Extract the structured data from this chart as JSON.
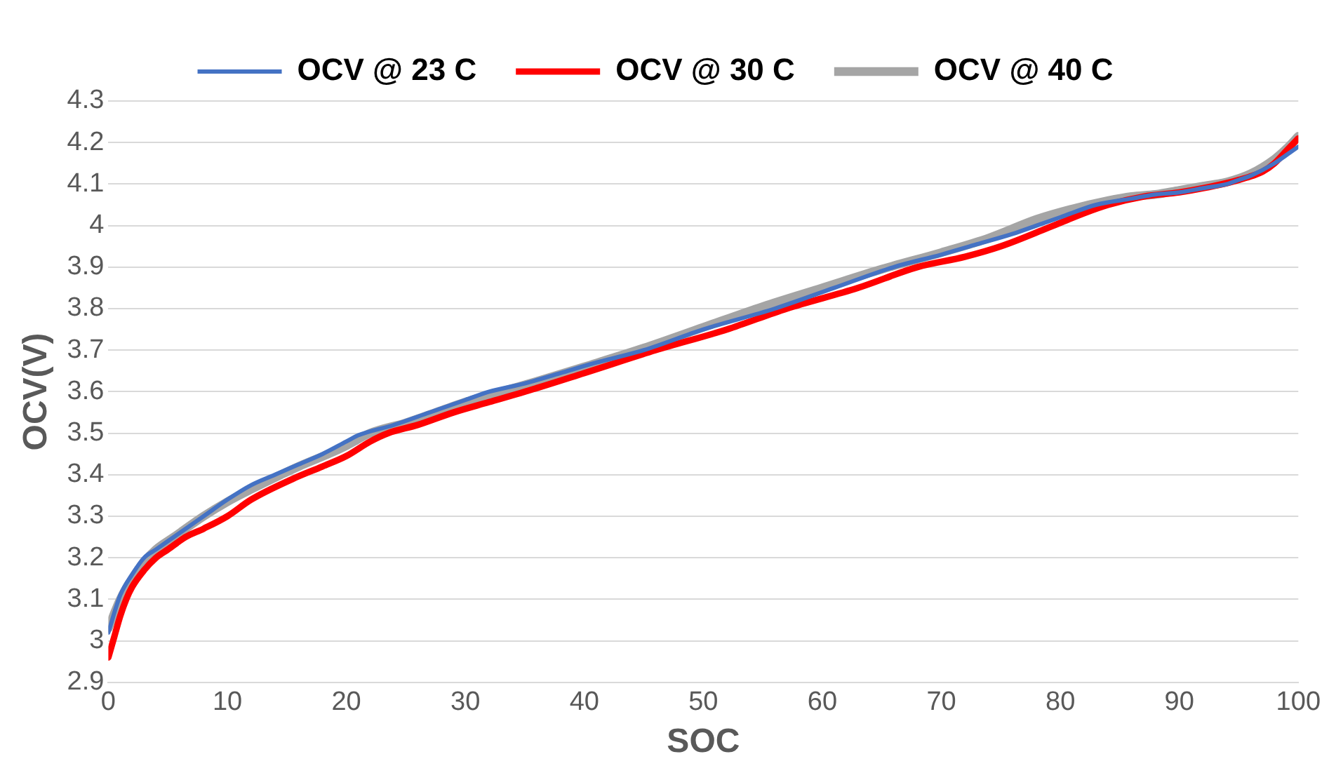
{
  "chart_data": {
    "type": "line",
    "xlabel": "SOC",
    "ylabel": "OCV(V)",
    "xlim": [
      0,
      100
    ],
    "xticks": [
      0,
      10,
      20,
      30,
      40,
      50,
      60,
      70,
      80,
      90,
      100
    ],
    "ylim": [
      2.9,
      4.3
    ],
    "yticks": [
      2.9,
      3,
      3.1,
      3.2,
      3.3,
      3.4,
      3.5,
      3.6,
      3.7,
      3.8,
      3.9,
      4,
      4.1,
      4.2,
      4.3
    ],
    "grid": "y",
    "legend": "top",
    "marker": "none",
    "line_style": "solid",
    "series": [
      {
        "name": "OCV @ 23 C",
        "color": "#4472c4",
        "x": [
          0,
          1,
          2,
          3,
          4,
          6,
          8,
          10,
          12,
          14,
          16,
          18,
          20,
          21,
          24,
          27,
          30,
          32,
          35,
          38,
          41,
          45,
          50,
          56,
          61,
          66,
          70,
          73,
          76,
          78,
          80,
          83,
          86,
          88,
          90,
          92,
          94,
          95,
          96,
          98,
          99,
          100
        ],
        "values": [
          3.02,
          3.11,
          3.16,
          3.2,
          3.22,
          3.26,
          3.3,
          3.34,
          3.375,
          3.4,
          3.425,
          3.45,
          3.48,
          3.495,
          3.52,
          3.55,
          3.58,
          3.6,
          3.62,
          3.645,
          3.67,
          3.7,
          3.75,
          3.8,
          3.85,
          3.9,
          3.93,
          3.955,
          3.98,
          4,
          4.02,
          4.05,
          4.065,
          4.075,
          4.08,
          4.09,
          4.1,
          4.11,
          4.12,
          4.15,
          4.17,
          4.19
        ]
      },
      {
        "name": "OCV @ 30 C",
        "color": "#ff0000",
        "x": [
          0,
          0.5,
          1,
          1.5,
          2,
          3,
          4,
          5,
          6.5,
          8,
          10,
          12,
          15.5,
          18,
          20,
          22,
          23.5,
          26,
          29,
          32,
          35,
          40,
          46,
          52,
          57,
          63,
          68,
          72,
          75,
          79,
          82,
          84,
          87,
          90,
          92,
          95,
          97,
          98,
          99,
          100
        ],
        "values": [
          2.96,
          3.01,
          3.06,
          3.1,
          3.13,
          3.17,
          3.2,
          3.22,
          3.25,
          3.27,
          3.3,
          3.34,
          3.39,
          3.42,
          3.445,
          3.48,
          3.5,
          3.52,
          3.55,
          3.575,
          3.6,
          3.645,
          3.7,
          3.75,
          3.8,
          3.85,
          3.9,
          3.925,
          3.95,
          3.995,
          4.03,
          4.05,
          4.07,
          4.08,
          4.09,
          4.11,
          4.13,
          4.15,
          4.18,
          4.21
        ]
      },
      {
        "name": "OCV @ 40 C",
        "color": "#a5a5a5",
        "x": [
          0,
          1,
          2,
          3,
          4,
          5.5,
          8,
          10,
          12,
          14.5,
          16,
          18.5,
          20,
          22,
          25,
          28,
          30,
          33,
          36,
          40,
          45,
          50,
          55,
          60,
          65,
          70,
          74,
          78,
          81,
          84,
          86,
          88,
          90,
          92,
          94,
          96,
          98,
          99,
          100
        ],
        "values": [
          3.03,
          3.1,
          3.15,
          3.19,
          3.22,
          3.25,
          3.3,
          3.335,
          3.365,
          3.4,
          3.42,
          3.45,
          3.47,
          3.5,
          3.525,
          3.555,
          3.575,
          3.6,
          3.625,
          3.66,
          3.705,
          3.755,
          3.805,
          3.85,
          3.895,
          3.935,
          3.97,
          4.015,
          4.04,
          4.06,
          4.07,
          4.075,
          4.085,
          4.095,
          4.105,
          4.125,
          4.16,
          4.185,
          4.215
        ]
      }
    ]
  }
}
